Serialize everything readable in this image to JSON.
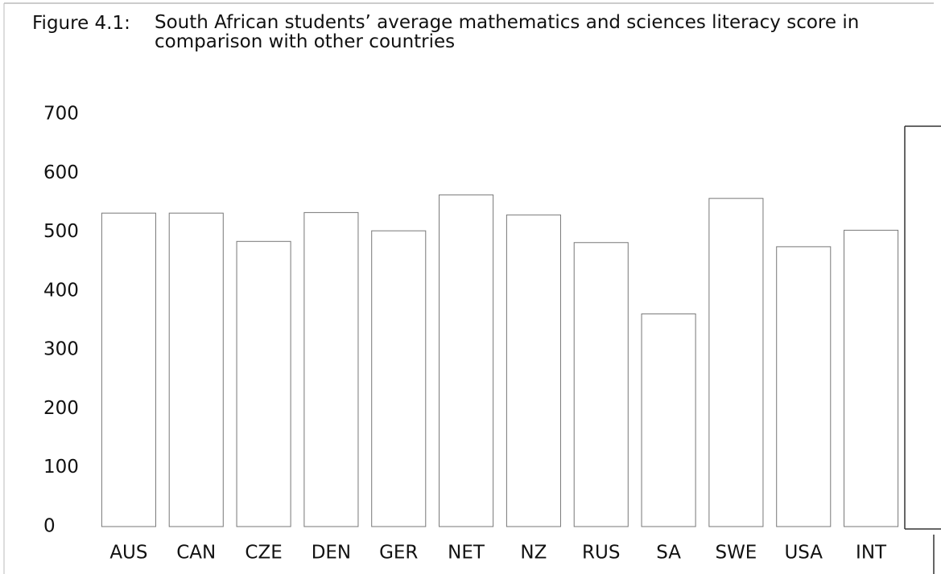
{
  "chart_data": {
    "type": "bar",
    "label": "Figure 4.1:",
    "title": "South African students’ average mathematics and sciences literacy score in comparison with other countries",
    "categories": [
      "AUS",
      "CAN",
      "CZE",
      "DEN",
      "GER",
      "NET",
      "NZ",
      "RUS",
      "SA",
      "SWE",
      "USA",
      "INT"
    ],
    "values": [
      532,
      532,
      484,
      533,
      502,
      563,
      529,
      482,
      361,
      557,
      475,
      503
    ],
    "color": "#ffffff",
    "ylim": [
      0,
      700
    ],
    "yticks": [
      0,
      100,
      200,
      300,
      400,
      500,
      600,
      700
    ],
    "grid": false
  }
}
